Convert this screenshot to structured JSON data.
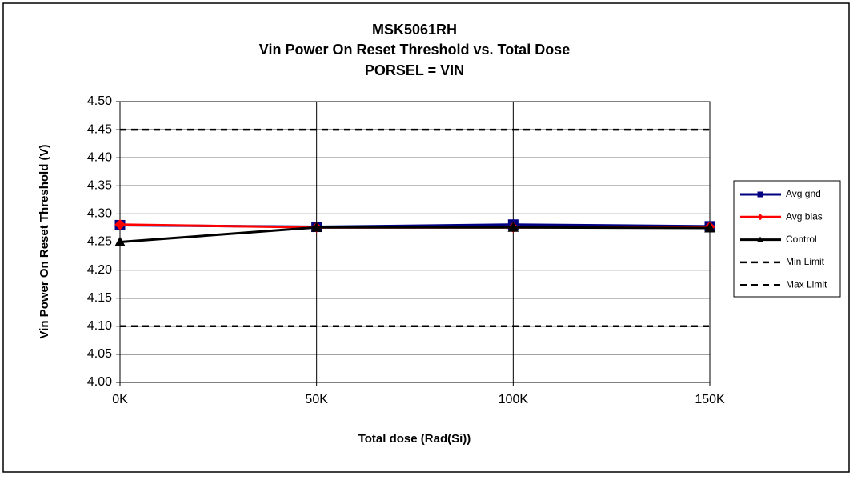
{
  "chart_data": {
    "type": "line",
    "title": [
      "MSK5061RH",
      "Vin Power On Reset Threshold vs. Total Dose",
      "PORSEL = VIN"
    ],
    "xlabel": "Total dose (Rad(Si))",
    "ylabel": "Vin Power On Reset Threshold (V)",
    "x": [
      0,
      50000,
      100000,
      150000
    ],
    "xlim": [
      0,
      150000
    ],
    "xticks": [
      {
        "value": 0,
        "label": "0K"
      },
      {
        "value": 50000,
        "label": "50K"
      },
      {
        "value": 100000,
        "label": "100K"
      },
      {
        "value": 150000,
        "label": "150K"
      }
    ],
    "ylim": [
      4.0,
      4.5
    ],
    "yticks": [
      {
        "value": 4.0,
        "label": "4.00"
      },
      4.05,
      {
        "value": 4.1,
        "label": "4.10"
      },
      4.15,
      {
        "value": 4.2,
        "label": "4.20"
      },
      4.25,
      {
        "value": 4.3,
        "label": "4.30"
      },
      4.35,
      {
        "value": 4.4,
        "label": "4.40"
      },
      4.45,
      {
        "value": 4.5,
        "label": "4.50"
      }
    ],
    "grid": true,
    "legend": "right",
    "series": [
      {
        "name": "Avg gnd",
        "color": "#000080",
        "marker": "square",
        "values": [
          4.28,
          4.277,
          4.281,
          4.278
        ]
      },
      {
        "name": "Avg bias",
        "color": "#ff0000",
        "marker": "diamond",
        "values": [
          4.281,
          4.276,
          4.276,
          4.277
        ]
      },
      {
        "name": "Control",
        "color": "#000000",
        "marker": "triangle",
        "values": [
          4.25,
          4.276,
          4.276,
          4.275
        ]
      },
      {
        "name": "Min Limit",
        "color": "#000000",
        "dashed": true,
        "values": [
          4.1,
          4.1,
          4.1,
          4.1
        ]
      },
      {
        "name": "Max Limit",
        "color": "#000000",
        "dashed": true,
        "values": [
          4.45,
          4.45,
          4.45,
          4.45
        ]
      }
    ]
  }
}
